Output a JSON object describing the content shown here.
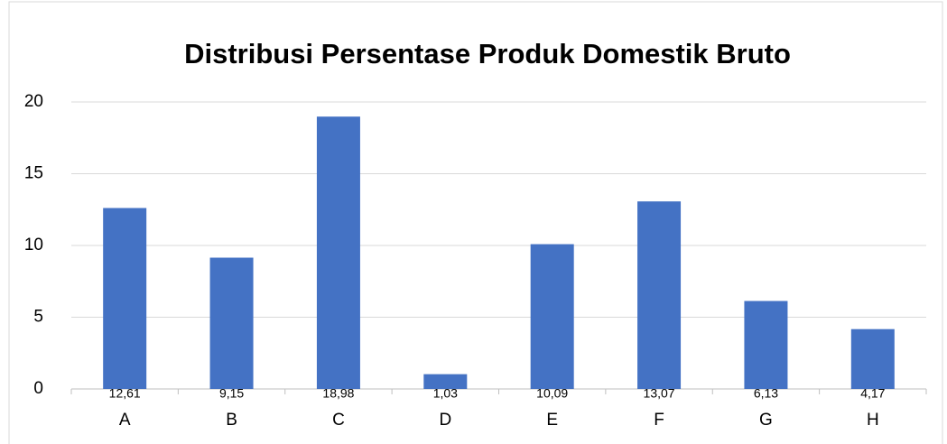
{
  "chart_data": {
    "type": "bar",
    "title": "Distribusi Persentase Produk Domestik Bruto",
    "categories": [
      "A",
      "B",
      "C",
      "D",
      "E",
      "F",
      "G",
      "H"
    ],
    "values": [
      12.61,
      9.15,
      18.98,
      1.03,
      10.09,
      13.07,
      6.13,
      4.17
    ],
    "value_labels": [
      "12,61",
      "9,15",
      "18,98",
      "1,03",
      "10,09",
      "13,07",
      "6,13",
      "4,17"
    ],
    "color": "#4472c4",
    "ylim": [
      0,
      20
    ],
    "yticks": [
      0,
      5,
      10,
      15,
      20
    ],
    "grid": true
  }
}
